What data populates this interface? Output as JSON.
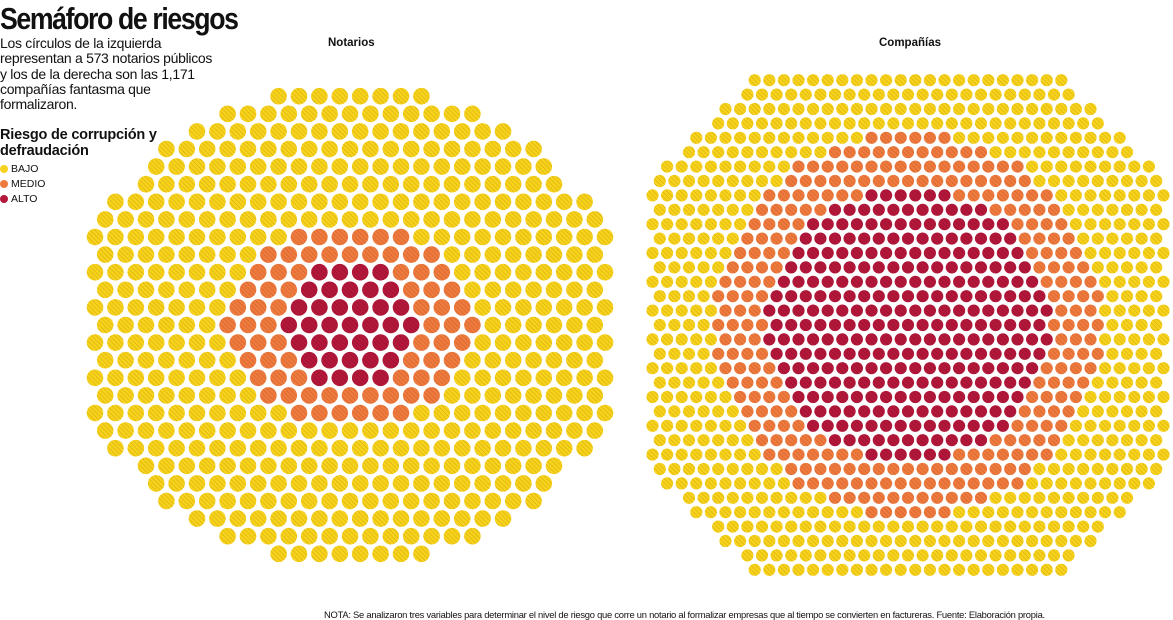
{
  "header": {
    "title": "Semáforo de riesgos",
    "description": "Los círculos de la izquierda representan a 573 notarios públicos y los de la derecha son las 1,171 compañías fantasma que formalizaron."
  },
  "legend": {
    "title": "Riesgo de corrupción y defraudación",
    "items": [
      {
        "label": "BAJO",
        "color": "#f7d21d"
      },
      {
        "label": "MEDIO",
        "color": "#ee7a3e"
      },
      {
        "label": "ALTO",
        "color": "#b3173a"
      }
    ]
  },
  "note": "NOTA: Se analizaron tres variables para determinar el nivel de riesgo que corre un notario al formalizar empresas que al tiempo se convierten en factureras. Fuente: Elaboración propia.",
  "chart_data": [
    {
      "type": "scatter",
      "title": "Notarios",
      "total": 573,
      "unit": "notarios públicos",
      "levels": [
        "ALTO",
        "MEDIO",
        "BAJO"
      ],
      "colors": {
        "ALTO": "#b3173a",
        "MEDIO": "#ee7a3e",
        "BAJO": "#f7d21d"
      }
    },
    {
      "type": "scatter",
      "title": "Compañías",
      "total": 1171,
      "unit": "compañías fantasma",
      "levels": [
        "ALTO",
        "MEDIO",
        "BAJO"
      ],
      "colors": {
        "ALTO": "#b3173a",
        "MEDIO": "#ee7a3e",
        "BAJO": "#f7d21d"
      }
    }
  ]
}
